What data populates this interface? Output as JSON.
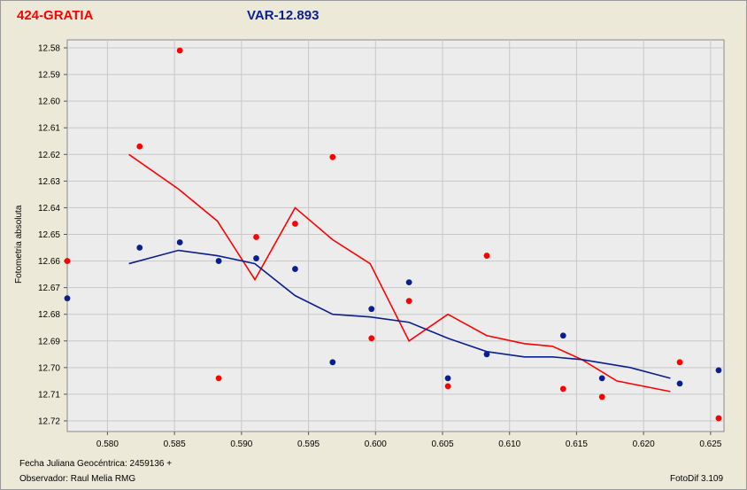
{
  "window": {
    "title_object": "424-GRATIA",
    "title_variable": "VAR-12.893"
  },
  "footer": {
    "julian_date": "Fecha Juliana Geocéntrica: 2459136 +",
    "observer": "Observador: Raul Melia RMG",
    "software": "FotoDif 3.109"
  },
  "colors": {
    "red_series": "#ff0000",
    "blue_series": "#0a1f8f",
    "plot_background": "#ececec",
    "grid": "#c8c8c8"
  },
  "chart_data": {
    "type": "scatter",
    "title": "",
    "xlabel": "",
    "ylabel": "Fotometria absoluta",
    "xlim": [
      0.577,
      0.626
    ],
    "ylim": [
      12.577,
      12.724
    ],
    "y_inverted": true,
    "grid": true,
    "xticks": [
      "0.580",
      "0.585",
      "0.590",
      "0.595",
      "0.600",
      "0.605",
      "0.610",
      "0.615",
      "0.620",
      "0.625"
    ],
    "xtick_values": [
      0.58,
      0.585,
      0.59,
      0.595,
      0.6,
      0.605,
      0.61,
      0.615,
      0.62,
      0.625
    ],
    "yticks": [
      "12.58",
      "12.59",
      "12.60",
      "12.61",
      "12.62",
      "12.63",
      "12.64",
      "12.65",
      "12.66",
      "12.67",
      "12.68",
      "12.69",
      "12.70",
      "12.71",
      "12.72"
    ],
    "ytick_values": [
      12.58,
      12.59,
      12.6,
      12.61,
      12.62,
      12.63,
      12.64,
      12.65,
      12.66,
      12.67,
      12.68,
      12.69,
      12.7,
      12.71,
      12.72
    ],
    "series": [
      {
        "color": "#ff0000",
        "points": {
          "x": [
            0.577,
            0.5824,
            0.5854,
            0.5883,
            0.5911,
            0.594,
            0.5968,
            0.5997,
            0.6025,
            0.6054,
            0.6083,
            0.614,
            0.6169,
            0.6227,
            0.6256
          ],
          "y": [
            12.66,
            12.617,
            12.581,
            12.704,
            12.651,
            12.646,
            12.621,
            12.689,
            12.675,
            12.707,
            12.658,
            12.708,
            12.711,
            12.698,
            12.719
          ]
        },
        "trend": {
          "x": [
            0.5816,
            0.5853,
            0.5882,
            0.591,
            0.594,
            0.5968,
            0.5996,
            0.6025,
            0.6054,
            0.6083,
            0.6111,
            0.6132,
            0.6154,
            0.618,
            0.622
          ],
          "y": [
            12.62,
            12.633,
            12.645,
            12.667,
            12.64,
            12.652,
            12.661,
            12.69,
            12.68,
            12.688,
            12.691,
            12.692,
            12.697,
            12.705,
            12.709
          ]
        }
      },
      {
        "color": "#0a1f8f",
        "points": {
          "x": [
            0.577,
            0.5824,
            0.5854,
            0.5883,
            0.5911,
            0.594,
            0.5968,
            0.5997,
            0.6025,
            0.6054,
            0.6083,
            0.614,
            0.6169,
            0.6227,
            0.6256
          ],
          "y": [
            12.674,
            12.655,
            12.653,
            12.66,
            12.659,
            12.663,
            12.698,
            12.678,
            12.668,
            12.704,
            12.695,
            12.688,
            12.704,
            12.706,
            12.701
          ]
        },
        "trend": {
          "x": [
            0.5816,
            0.5853,
            0.5882,
            0.591,
            0.594,
            0.5968,
            0.5996,
            0.6025,
            0.6054,
            0.6083,
            0.6111,
            0.6132,
            0.6154,
            0.619,
            0.622
          ],
          "y": [
            12.661,
            12.656,
            12.658,
            12.661,
            12.673,
            12.68,
            12.681,
            12.683,
            12.689,
            12.694,
            12.696,
            12.696,
            12.697,
            12.7,
            12.704
          ]
        }
      }
    ]
  }
}
